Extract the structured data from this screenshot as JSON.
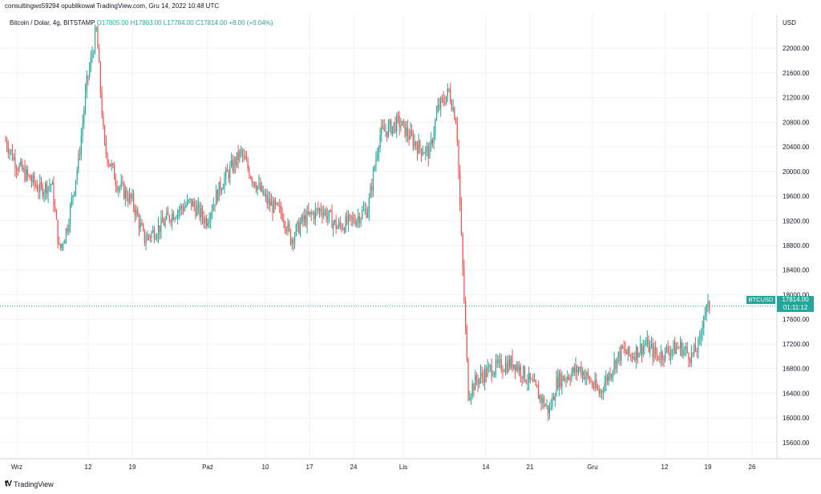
{
  "attribution": "consultingws59294 opublikował TradingView.com, Gru 14, 2022 10:48 UTC",
  "legend": {
    "symbol": "Bitcoin / Dolar, 4g, BITSTAMP",
    "open": "O17805.00",
    "high": "H17863.00",
    "low": "L17784.00",
    "close": "C17814.00",
    "change": "+8.00 (+0.04%)"
  },
  "price_badge": {
    "symbol": "BTCUSD",
    "price": "17814.00",
    "countdown": "01:11:12"
  },
  "footer": {
    "logo_text": "TradingView"
  },
  "colors": {
    "up": "#26a69a",
    "down": "#ef5350",
    "grid": "#f0f3fa"
  },
  "chart_data": {
    "type": "candlestick",
    "title": "Bitcoin / Dolar, 4g, BITSTAMP",
    "currency": "USD",
    "ylim": [
      15350,
      22550
    ],
    "y_ticks": [
      15600,
      16000,
      16400,
      16800,
      17200,
      17600,
      18000,
      18400,
      18800,
      19200,
      19600,
      20000,
      20400,
      20800,
      21200,
      21600,
      22000
    ],
    "y_tick_labels": [
      "15600.00",
      "16000.00",
      "16400.00",
      "16800.00",
      "17200.00",
      "17600.00",
      "18000.00",
      "18400.00",
      "18800.00",
      "19200.00",
      "19600.00",
      "20000.00",
      "20400.00",
      "20800.00",
      "21200.00",
      "21600.00",
      "22000.00"
    ],
    "x_labels": [
      "Wrz",
      "12",
      "19",
      "Paź",
      "10",
      "17",
      "24",
      "Lis",
      "14",
      "21",
      "Gru",
      "12",
      "19",
      "26"
    ],
    "last_price": 17814,
    "grid": true,
    "anchors": [
      [
        0,
        20500
      ],
      [
        0.015,
        20100
      ],
      [
        0.03,
        19900
      ],
      [
        0.045,
        19700
      ],
      [
        0.06,
        19800
      ],
      [
        0.07,
        18700
      ],
      [
        0.08,
        19100
      ],
      [
        0.095,
        20200
      ],
      [
        0.105,
        21400
      ],
      [
        0.118,
        22300
      ],
      [
        0.128,
        20400
      ],
      [
        0.145,
        19800
      ],
      [
        0.165,
        19500
      ],
      [
        0.18,
        18900
      ],
      [
        0.2,
        19100
      ],
      [
        0.215,
        19300
      ],
      [
        0.24,
        19500
      ],
      [
        0.26,
        19200
      ],
      [
        0.28,
        19800
      ],
      [
        0.305,
        20300
      ],
      [
        0.32,
        19900
      ],
      [
        0.34,
        19500
      ],
      [
        0.36,
        19300
      ],
      [
        0.37,
        18900
      ],
      [
        0.385,
        19200
      ],
      [
        0.41,
        19400
      ],
      [
        0.43,
        19100
      ],
      [
        0.45,
        19200
      ],
      [
        0.47,
        19400
      ],
      [
        0.485,
        20600
      ],
      [
        0.51,
        20800
      ],
      [
        0.535,
        20400
      ],
      [
        0.55,
        20300
      ],
      [
        0.56,
        21000
      ],
      [
        0.575,
        21300
      ],
      [
        0.585,
        20800
      ],
      [
        0.59,
        19200
      ],
      [
        0.595,
        17800
      ],
      [
        0.6,
        16400
      ],
      [
        0.61,
        16600
      ],
      [
        0.63,
        16800
      ],
      [
        0.66,
        16900
      ],
      [
        0.685,
        16500
      ],
      [
        0.705,
        16100
      ],
      [
        0.715,
        16600
      ],
      [
        0.73,
        16700
      ],
      [
        0.745,
        16800
      ],
      [
        0.77,
        16400
      ],
      [
        0.79,
        16900
      ],
      [
        0.8,
        17100
      ],
      [
        0.81,
        17000
      ],
      [
        0.83,
        17200
      ],
      [
        0.845,
        17000
      ],
      [
        0.86,
        17100
      ],
      [
        0.875,
        17150
      ],
      [
        0.89,
        17000
      ],
      [
        0.9,
        17200
      ],
      [
        0.905,
        17700
      ],
      [
        0.913,
        17814
      ]
    ],
    "series": [
      {
        "name": "BTCUSD",
        "values_note": ""
      }
    ]
  }
}
